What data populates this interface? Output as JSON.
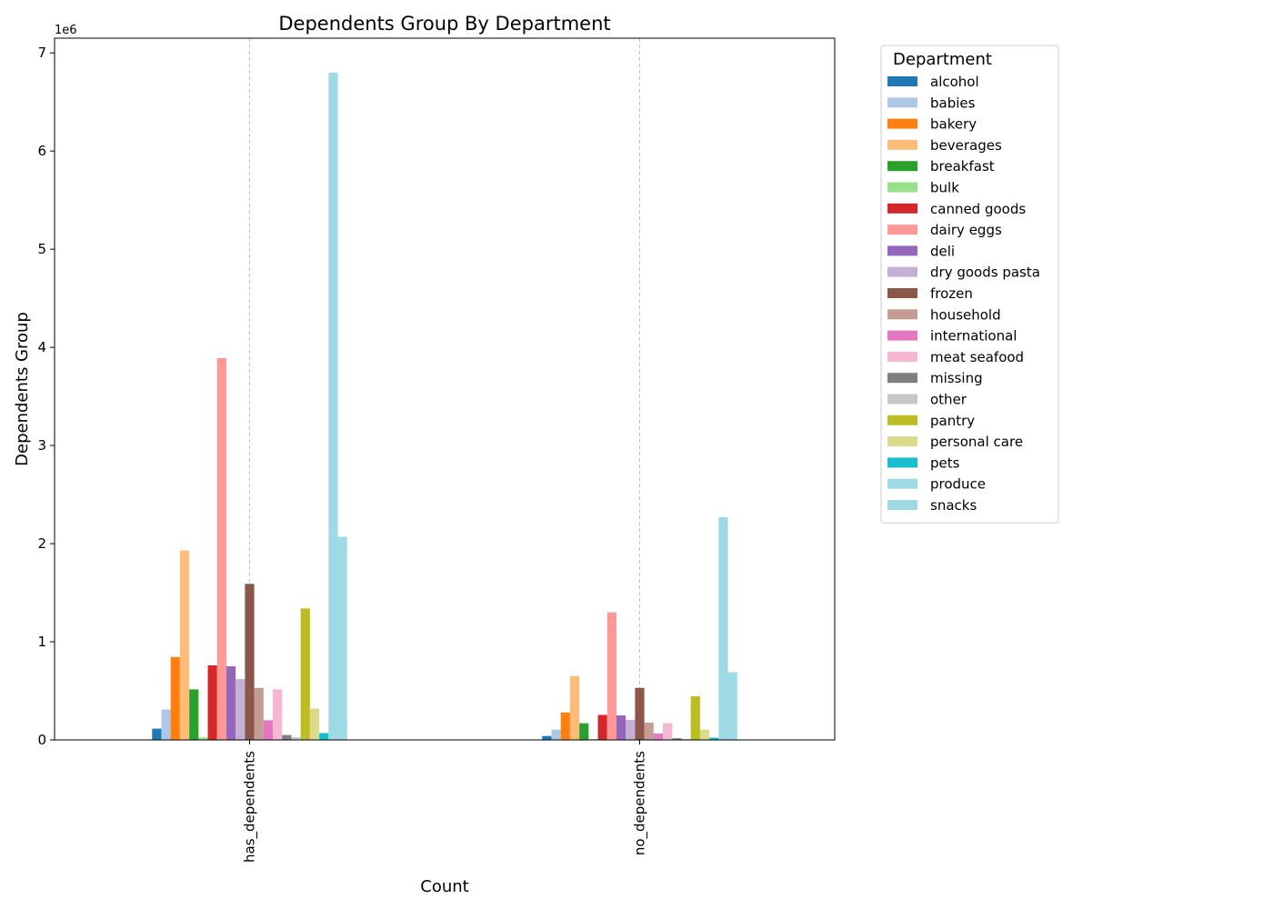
{
  "chart_data": {
    "type": "bar",
    "title": "Dependents Group By Department",
    "xlabel": "Count",
    "ylabel": "Dependents Group",
    "y_multiplier_label": "1e6",
    "ylim": [
      0,
      7150000
    ],
    "yticks": [
      "0",
      "1",
      "2",
      "3",
      "4",
      "5",
      "6",
      "7"
    ],
    "grid": "x-dashed",
    "legend_title": "Department",
    "legend_placement": "right-outside-top",
    "categories": [
      "has_dependents",
      "no_dependents"
    ],
    "series": [
      {
        "name": "alcohol",
        "color": "#1f77b4",
        "values": [
          115000,
          40000
        ]
      },
      {
        "name": "babies",
        "color": "#aec7e8",
        "values": [
          310000,
          105000
        ]
      },
      {
        "name": "bakery",
        "color": "#ff7f0e",
        "values": [
          845000,
          280000
        ]
      },
      {
        "name": "beverages",
        "color": "#ffbb78",
        "values": [
          1930000,
          650000
        ]
      },
      {
        "name": "breakfast",
        "color": "#2ca02c",
        "values": [
          515000,
          170000
        ]
      },
      {
        "name": "bulk",
        "color": "#98df8a",
        "values": [
          25000,
          8000
        ]
      },
      {
        "name": "canned goods",
        "color": "#d62728",
        "values": [
          760000,
          255000
        ]
      },
      {
        "name": "dairy eggs",
        "color": "#ff9896",
        "values": [
          3890000,
          1300000
        ]
      },
      {
        "name": "deli",
        "color": "#9467bd",
        "values": [
          750000,
          250000
        ]
      },
      {
        "name": "dry goods pasta",
        "color": "#c5b0d5",
        "values": [
          620000,
          205000
        ]
      },
      {
        "name": "frozen",
        "color": "#8c564b",
        "values": [
          1590000,
          530000
        ]
      },
      {
        "name": "household",
        "color": "#c49c94",
        "values": [
          530000,
          175000
        ]
      },
      {
        "name": "international",
        "color": "#e377c2",
        "values": [
          200000,
          65000
        ]
      },
      {
        "name": "meat seafood",
        "color": "#f7b6d2",
        "values": [
          515000,
          170000
        ]
      },
      {
        "name": "missing",
        "color": "#7f7f7f",
        "values": [
          50000,
          17000
        ]
      },
      {
        "name": "other",
        "color": "#c7c7c7",
        "values": [
          28000,
          9000
        ]
      },
      {
        "name": "pantry",
        "color": "#bcbd22",
        "values": [
          1340000,
          445000
        ]
      },
      {
        "name": "personal care",
        "color": "#dbdb8d",
        "values": [
          320000,
          105000
        ]
      },
      {
        "name": "pets",
        "color": "#17becf",
        "values": [
          70000,
          23000
        ]
      },
      {
        "name": "produce",
        "color": "#9edae5",
        "values": [
          6800000,
          2270000
        ]
      },
      {
        "name": "snacks",
        "color": "#9edae5",
        "values": [
          2070000,
          690000
        ]
      }
    ]
  }
}
